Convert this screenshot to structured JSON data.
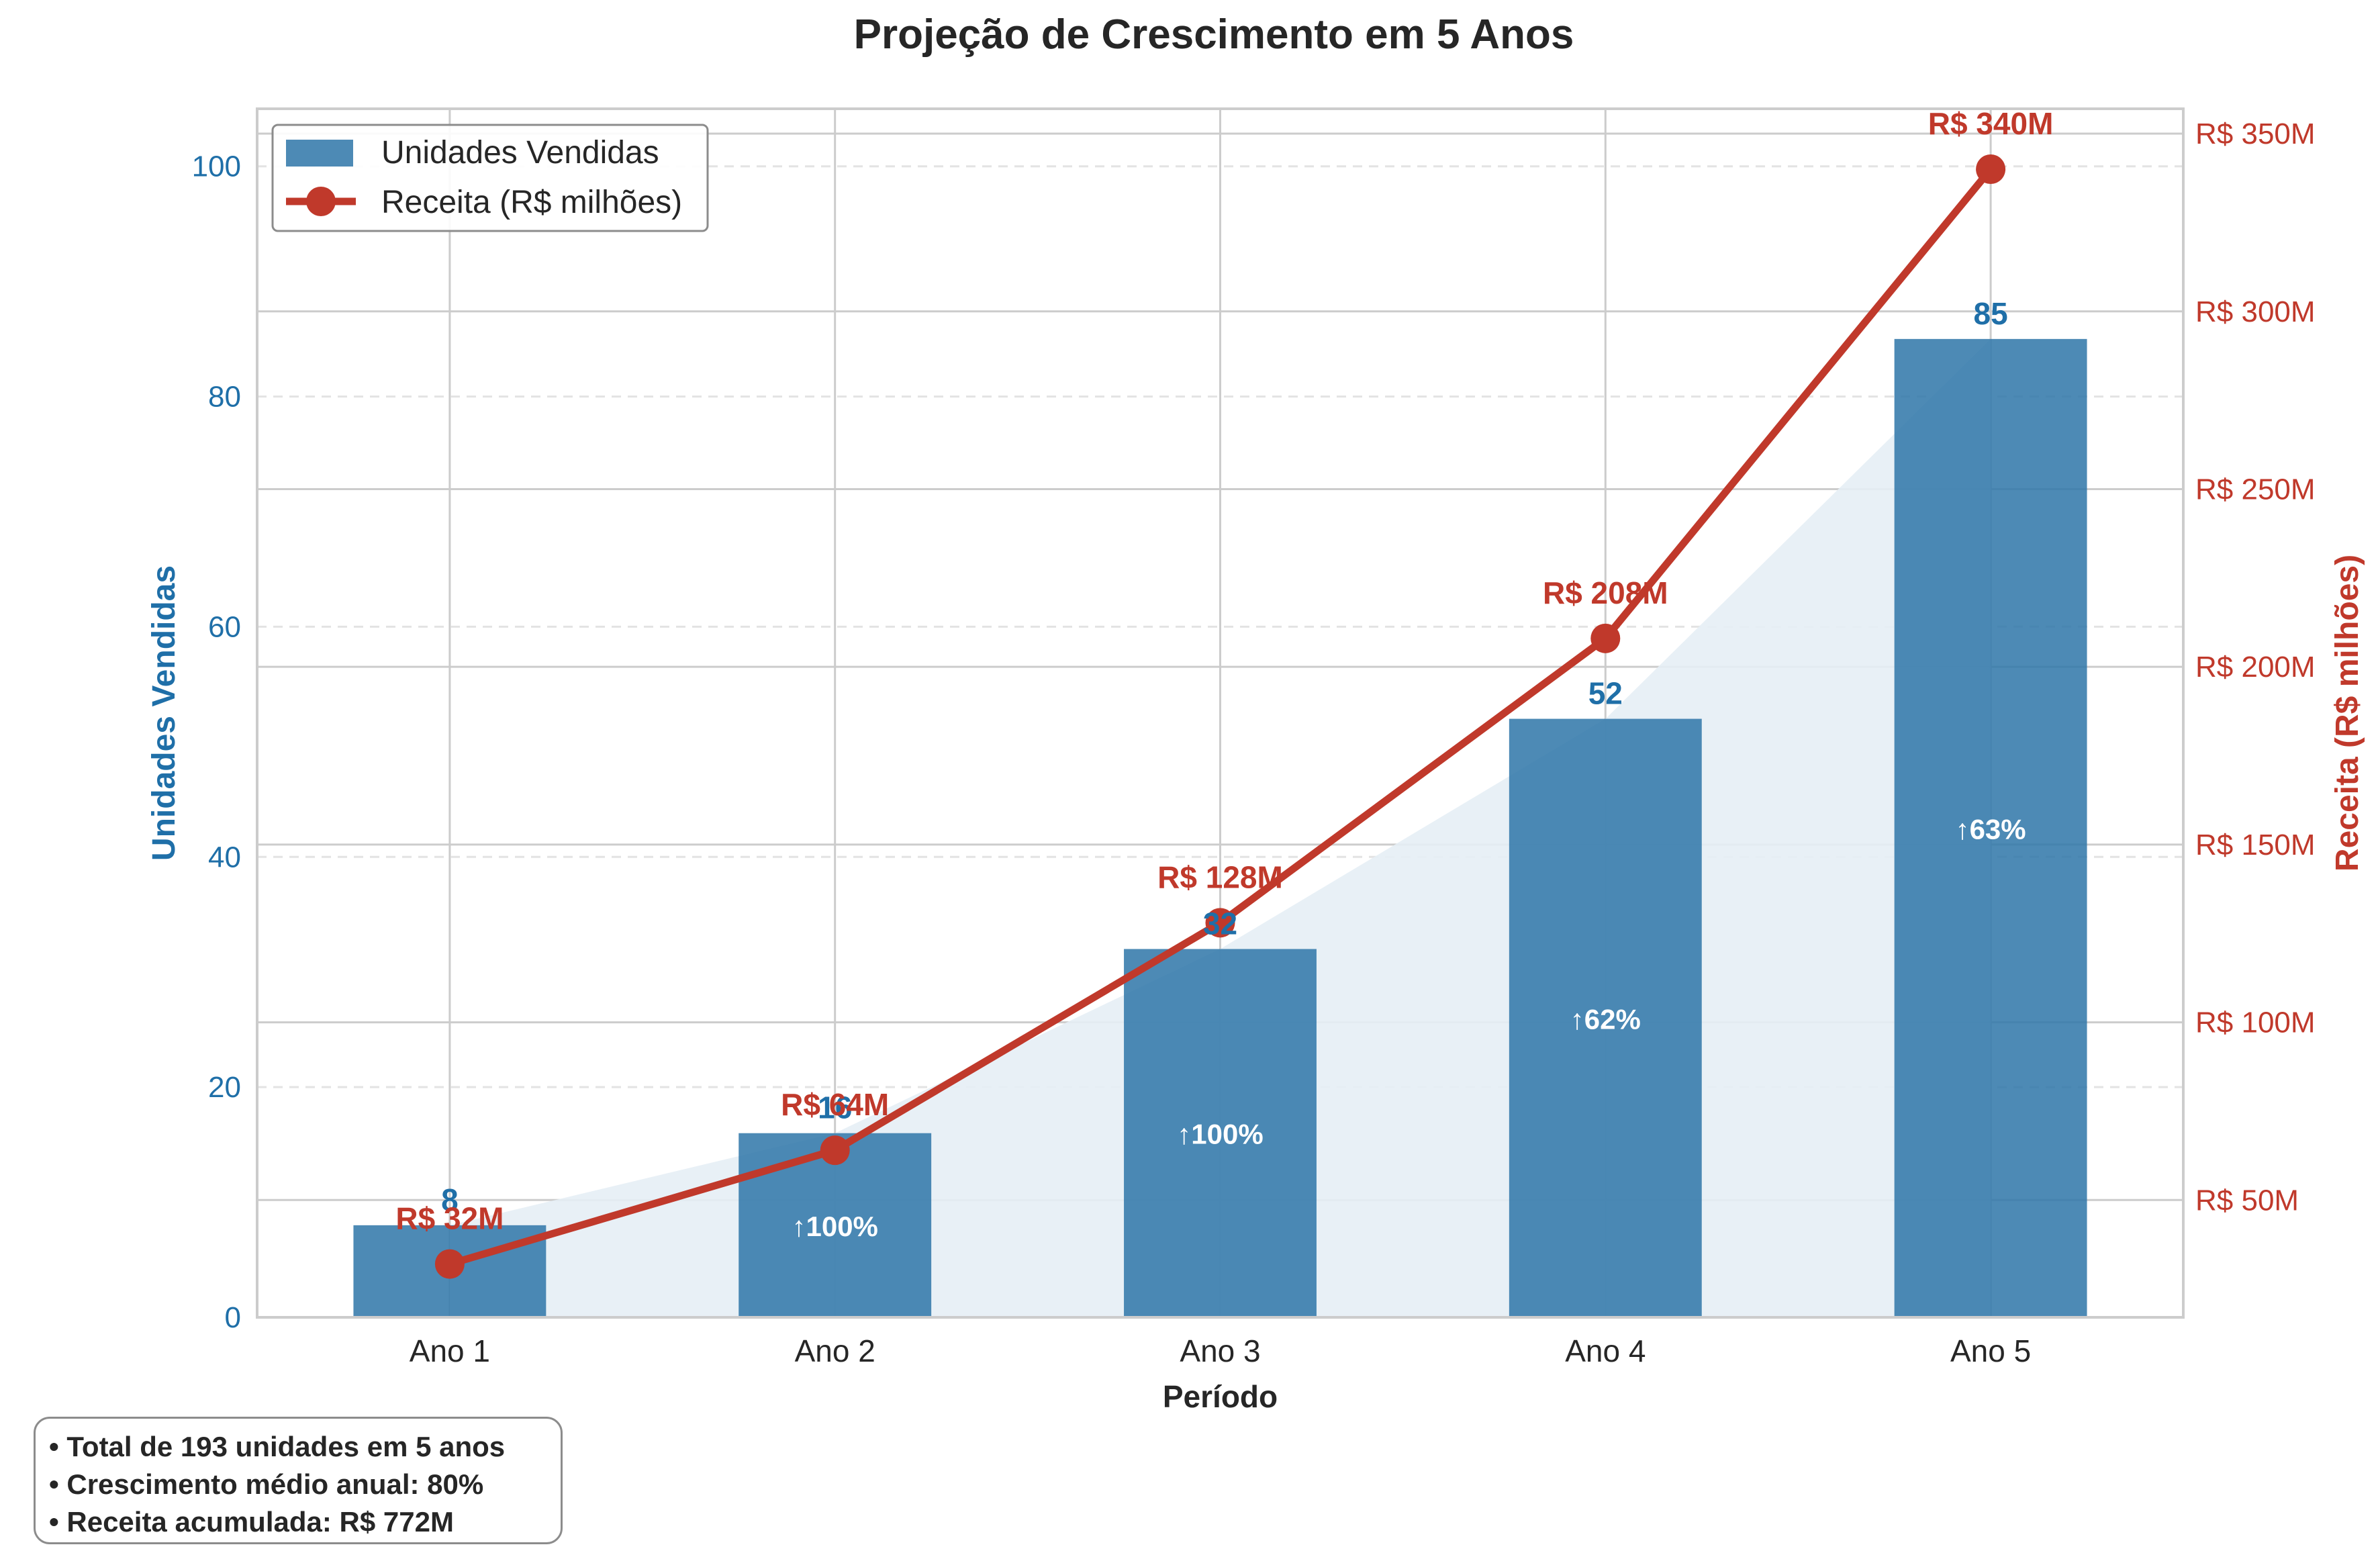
{
  "chart_data": {
    "type": "bar+line",
    "title": "Projeção de Crescimento em 5 Anos",
    "xlabel": "Período",
    "categories": [
      "Ano 1",
      "Ano 2",
      "Ano 3",
      "Ano 4",
      "Ano 5"
    ],
    "bar_series": {
      "name": "Unidades Vendidas",
      "axis": "left",
      "values": [
        8,
        16,
        32,
        52,
        85
      ],
      "value_labels": [
        "8",
        "16",
        "32",
        "52",
        "85"
      ],
      "growth_labels": [
        "",
        "↑100%",
        "↑100%",
        "↑62%",
        "↑63%"
      ]
    },
    "line_series": {
      "name": "Receita (R$ milhões)",
      "axis": "right",
      "values": [
        32,
        64,
        128,
        208,
        340
      ],
      "value_labels": [
        "R$ 32M",
        "R$ 64M",
        "R$ 128M",
        "R$ 208M",
        "R$ 340M"
      ]
    },
    "y_left": {
      "label": "Unidades Vendidas",
      "ylim": [
        0,
        105
      ],
      "ticks": [
        0,
        20,
        40,
        60,
        80,
        100
      ],
      "tick_labels": [
        "0",
        "20",
        "40",
        "60",
        "80",
        "100"
      ]
    },
    "y_right": {
      "label": "Receita (R$ milhões)",
      "ylim": [
        17,
        357
      ],
      "ticks": [
        50,
        100,
        150,
        200,
        250,
        300,
        350
      ],
      "tick_labels": [
        "R$ 50M",
        "R$ 100M",
        "R$ 150M",
        "R$ 200M",
        "R$ 250M",
        "R$ 300M",
        "R$ 350M"
      ]
    },
    "legend": {
      "placement": "top-left",
      "entries": [
        "Unidades Vendidas",
        "Receita (R$ milhões)"
      ]
    },
    "grid": true,
    "colors": {
      "bar": "#2e75a8",
      "line": "#c0392b",
      "left_axis": "#1f6fa8",
      "right_axis": "#c0392b",
      "fill": "#e6eef5"
    }
  },
  "summary": {
    "lines": [
      "• Total de 193 unidades em 5 anos",
      "• Crescimento médio anual: 80%",
      "• Receita acumulada: R$ 772M"
    ]
  }
}
